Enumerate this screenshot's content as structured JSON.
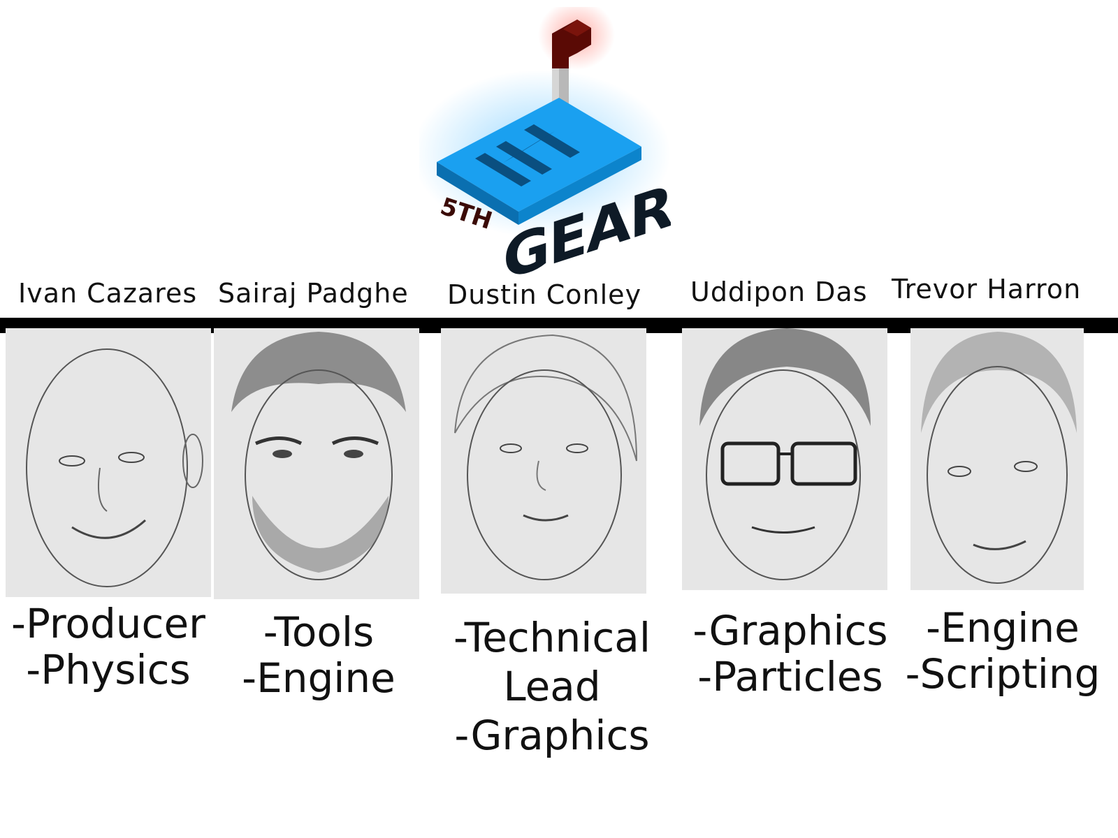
{
  "logo": {
    "top_text": "5TH",
    "main_text": "GEAR",
    "icon": "gear-shifter-logo-icon"
  },
  "members": [
    {
      "name": "Ivan Cazares",
      "roles": [
        "-Producer",
        "-Physics"
      ]
    },
    {
      "name": "Sairaj Padghe",
      "roles": [
        "-Tools",
        "-Engine"
      ]
    },
    {
      "name": "Dustin Conley",
      "roles": [
        "-Technical",
        "Lead",
        "-Graphics"
      ]
    },
    {
      "name": "Uddipon Das",
      "roles": [
        "-Graphics",
        "-Particles"
      ]
    },
    {
      "name": "Trevor Harron",
      "roles": [
        "-Engine",
        "-Scripting"
      ]
    }
  ],
  "colors": {
    "logo_blue": "#1aa0f0",
    "logo_dark_red": "#5a0a05",
    "divider": "#000000"
  }
}
